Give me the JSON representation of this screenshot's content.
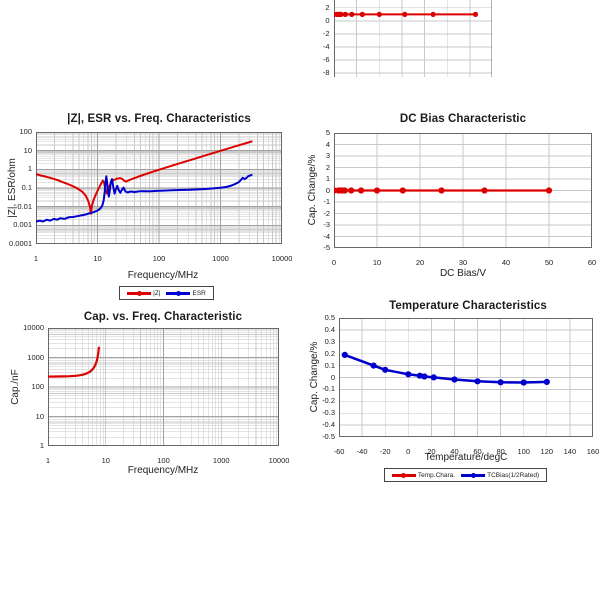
{
  "colors": {
    "red": "#dd0000",
    "blue": "#0000cc",
    "grid_minor": "#c9c9c9",
    "grid_major": "#a2a2a2",
    "border": "#686868",
    "text": "#1b1b1b",
    "background": "#ffffff"
  },
  "chart_data": [
    {
      "id": "impedance-esr-vs-freq",
      "type": "line",
      "title": "|Z|, ESR vs. Freq. Characteristics",
      "xlabel": "Frequency/MHz",
      "ylabel": "|Z|, ESR/ohm",
      "x_scale": "log",
      "y_scale": "log",
      "xlim": [
        1,
        10000
      ],
      "ylim": [
        100,
        0.0001
      ],
      "x_ticks": [
        1,
        10,
        100,
        1000,
        10000
      ],
      "y_ticks": [
        100,
        10,
        1,
        0.1,
        0.01,
        0.001,
        0.0001
      ],
      "grid": "log-minor",
      "legend": {
        "position": "bottom",
        "items": [
          {
            "label": "|Z|",
            "color": "#dd0000"
          },
          {
            "label": "ESR",
            "color": "#0000cc"
          }
        ]
      },
      "series": [
        {
          "name": "|Z|",
          "color": "#dd0000",
          "width": 2,
          "markers": false,
          "x": [
            1,
            1.3,
            1.7,
            2.2,
            2.8,
            3.6,
            4.6,
            5.6,
            6.4,
            7.0,
            7.5,
            7.8,
            8.1,
            8.6,
            9.3,
            10.2,
            11.2,
            12.2,
            12.8,
            13.4,
            14.2,
            15.2,
            16.5,
            18.5,
            21,
            23.5,
            25.5,
            27,
            29,
            31,
            34,
            40,
            55,
            80,
            120,
            200,
            350,
            600,
            1000,
            1800,
            3200
          ],
          "y": [
            0.55,
            0.44,
            0.35,
            0.27,
            0.2,
            0.145,
            0.1,
            0.065,
            0.04,
            0.022,
            0.011,
            0.0042,
            0.011,
            0.022,
            0.042,
            0.08,
            0.15,
            0.25,
            0.19,
            0.09,
            0.05,
            0.1,
            0.19,
            0.27,
            0.32,
            0.34,
            0.3,
            0.25,
            0.22,
            0.24,
            0.28,
            0.34,
            0.5,
            0.75,
            1.15,
            1.95,
            3.4,
            5.9,
            9.8,
            17.5,
            31
          ]
        },
        {
          "name": "ESR",
          "color": "#0000cc",
          "width": 2,
          "markers": false,
          "x": [
            1,
            1.15,
            1.3,
            1.5,
            1.7,
            1.95,
            2.2,
            2.5,
            2.9,
            3.4,
            4,
            4.7,
            5.5,
            6.4,
            7.4,
            8.5,
            9.5,
            10.5,
            11.3,
            12,
            12.6,
            13.1,
            13.5,
            13.9,
            14.3,
            14.8,
            15.3,
            15.9,
            16.5,
            17.2,
            18,
            19,
            20,
            21,
            22,
            23.5,
            25,
            26.5,
            28.5,
            31,
            35,
            40,
            47,
            56,
            70,
            90,
            120,
            160,
            220,
            300,
            420,
            600,
            800,
            1000,
            1250,
            1500,
            1750,
            2000,
            2150,
            2300,
            2450,
            2600,
            2800,
            3000,
            3200
          ],
          "y": [
            0.0016,
            0.0018,
            0.0016,
            0.002,
            0.0018,
            0.0022,
            0.002,
            0.0024,
            0.0022,
            0.0027,
            0.0028,
            0.0031,
            0.0034,
            0.0038,
            0.0044,
            0.005,
            0.0058,
            0.0068,
            0.0085,
            0.012,
            0.022,
            0.06,
            0.2,
            0.42,
            0.2,
            0.06,
            0.035,
            0.08,
            0.22,
            0.3,
            0.12,
            0.05,
            0.09,
            0.13,
            0.08,
            0.055,
            0.08,
            0.105,
            0.065,
            0.058,
            0.065,
            0.06,
            0.066,
            0.068,
            0.066,
            0.07,
            0.073,
            0.075,
            0.078,
            0.08,
            0.084,
            0.09,
            0.096,
            0.103,
            0.115,
            0.135,
            0.165,
            0.21,
            0.27,
            0.35,
            0.3,
            0.33,
            0.42,
            0.47,
            0.5
          ]
        }
      ]
    },
    {
      "id": "dc-bias",
      "type": "line",
      "title": "DC Bias Characteristic",
      "xlabel": "DC Bias/V",
      "ylabel": "Cap. Change/%",
      "x_scale": "linear",
      "y_scale": "linear",
      "xlim": [
        0,
        60
      ],
      "ylim": [
        5,
        -5
      ],
      "x_ticks": [
        0,
        10,
        20,
        30,
        40,
        50,
        60
      ],
      "y_ticks": [
        5,
        4,
        3,
        2,
        1,
        0,
        -1,
        -2,
        -3,
        -4,
        -5
      ],
      "grid": "linear",
      "series": [
        {
          "name": "DC Bias",
          "color": "#dd0000",
          "width": 2.2,
          "markers": true,
          "marker_r": 3.1,
          "x": [
            0,
            1,
            1.5,
            2,
            2.5,
            4,
            6.3,
            10,
            16,
            25,
            35,
            50
          ],
          "y": [
            0,
            0,
            0,
            0,
            0,
            0,
            0,
            0,
            0,
            0,
            0,
            0
          ]
        }
      ]
    },
    {
      "id": "cap-vs-freq",
      "type": "line",
      "title": "Cap. vs. Freq. Characteristic",
      "xlabel": "Frequency/MHz",
      "ylabel": "Cap./nF",
      "x_scale": "log",
      "y_scale": "log",
      "xlim": [
        1,
        10000
      ],
      "ylim": [
        10000,
        1
      ],
      "x_ticks": [
        1,
        10,
        100,
        1000,
        10000
      ],
      "y_ticks": [
        10000,
        1000,
        100,
        10,
        1
      ],
      "grid": "log-minor",
      "series": [
        {
          "name": "Cap.",
          "color": "#dd0000",
          "width": 2.2,
          "markers": false,
          "x": [
            1,
            1.4,
            1.9,
            2.4,
            3,
            3.5,
            4,
            4.5,
            5,
            5.4,
            5.8,
            6.2,
            6.6,
            7,
            7.25,
            7.45,
            7.6
          ],
          "y": [
            226,
            227,
            229,
            233,
            240,
            249,
            262,
            281,
            308,
            338,
            382,
            448,
            560,
            760,
            1080,
            1560,
            2150
          ]
        }
      ]
    },
    {
      "id": "temperature",
      "type": "line",
      "title": "Temperature Characteristics",
      "xlabel": "Temperature/degC",
      "ylabel": "Cap. Change/%",
      "x_scale": "linear",
      "y_scale": "linear",
      "xlim": [
        -60,
        160
      ],
      "ylim": [
        0.5,
        -0.5
      ],
      "x_ticks": [
        -60,
        -40,
        -20,
        0,
        20,
        40,
        60,
        80,
        100,
        120,
        140,
        160
      ],
      "y_ticks": [
        0.5,
        0.4,
        0.3,
        0.2,
        0.1,
        0,
        -0.1,
        -0.2,
        -0.3,
        -0.4,
        -0.5
      ],
      "grid": "linear",
      "legend": {
        "position": "bottom",
        "items": [
          {
            "label": "Temp.Chara.",
            "color": "#dd0000"
          },
          {
            "label": "TCBias(1/2Rated)",
            "color": "#0000cc"
          }
        ]
      },
      "series": [
        {
          "name": "Temp.Chara.",
          "color": "#dd0000",
          "width": 2,
          "markers": true,
          "marker_r": 2.6,
          "note": "overlapped by TCBias curve",
          "x": [
            -55,
            -30,
            -20,
            0,
            10,
            14,
            22,
            40,
            60,
            80,
            100,
            120
          ],
          "y": [
            0.19,
            0.1,
            0.065,
            0.027,
            0.015,
            0.008,
            0.001,
            -0.017,
            -0.032,
            -0.04,
            -0.042,
            -0.037
          ]
        },
        {
          "name": "TCBias(1/2Rated)",
          "color": "#0000cc",
          "width": 2.5,
          "markers": true,
          "marker_r": 3.1,
          "x": [
            -55,
            -30,
            -20,
            0,
            10,
            14,
            22,
            40,
            60,
            80,
            100,
            120
          ],
          "y": [
            0.19,
            0.1,
            0.065,
            0.027,
            0.015,
            0.008,
            0.001,
            -0.017,
            -0.032,
            -0.04,
            -0.042,
            -0.037
          ]
        }
      ]
    },
    {
      "id": "cut-off-top-chart",
      "type": "line",
      "title": "",
      "xlabel": "",
      "ylabel": "",
      "note": "partially visible chart cropped at top edge of screenshot",
      "x_scale": "linear",
      "y_scale": "linear",
      "xlim": [
        0,
        56
      ],
      "ylim": [
        3.2,
        -8.6
      ],
      "x_ticks": [],
      "y_ticks": [
        2,
        0,
        -2,
        -4,
        -6,
        -8
      ],
      "x_grid": [
        0,
        8,
        16,
        24,
        32,
        40,
        48,
        56
      ],
      "grid": "linear",
      "border": "sides",
      "series": [
        {
          "name": "red-flat-line",
          "color": "#dd0000",
          "width": 2,
          "markers": true,
          "marker_r": 2.6,
          "x": [
            0,
            1,
            1.5,
            2,
            2.5,
            4,
            6.3,
            10,
            16,
            25,
            35,
            50
          ],
          "y": [
            1,
            1,
            1,
            1,
            1,
            1,
            1,
            1,
            1,
            1,
            1,
            1
          ]
        }
      ]
    }
  ]
}
